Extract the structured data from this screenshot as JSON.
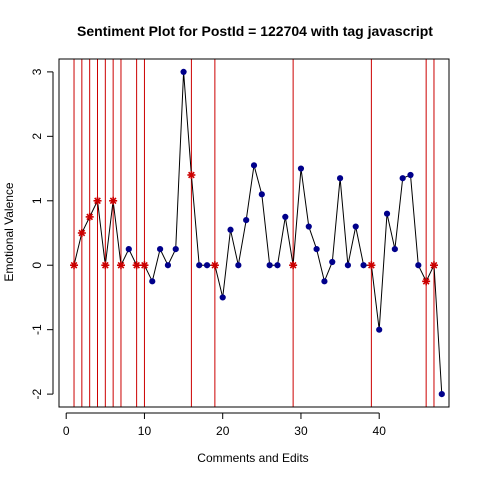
{
  "chart_data": {
    "type": "line",
    "title": "Sentiment Plot for PostId =  122704  with tag  javascript",
    "xlabel": "Comments and Edits",
    "ylabel": "Emotional Valence",
    "xlim": [
      0,
      48
    ],
    "ylim": [
      -2,
      3
    ],
    "x_ticks": [
      0,
      10,
      20,
      30,
      40
    ],
    "y_ticks": [
      -2,
      -1,
      0,
      1,
      2,
      3
    ],
    "colors": {
      "line": "#000000",
      "point": "#00008B",
      "edit_marker": "#CC0000",
      "edit_line": "#CC0000"
    },
    "series": [
      {
        "x": [
          1,
          2,
          3,
          4,
          5,
          6,
          7,
          8,
          9,
          10,
          11,
          12,
          13,
          14,
          15,
          16,
          17,
          18,
          19,
          20,
          21,
          22,
          23,
          24,
          25,
          26,
          27,
          28,
          29,
          30,
          31,
          32,
          33,
          34,
          35,
          36,
          37,
          38,
          39,
          40,
          41,
          42,
          43,
          44,
          45,
          46,
          47,
          48
        ],
        "values": [
          0,
          0.5,
          0.75,
          1,
          0,
          1,
          0,
          0.25,
          0,
          0,
          -0.25,
          0.25,
          0,
          0.25,
          3,
          1.4,
          0,
          0,
          0,
          -0.5,
          0.55,
          0,
          0.7,
          1.55,
          1.1,
          0,
          0,
          0.75,
          0,
          1.5,
          0.6,
          0.25,
          -0.25,
          0.05,
          1.35,
          0,
          0.6,
          0,
          0,
          -1,
          0.8,
          0.25,
          1.35,
          1.4,
          0,
          -0.25,
          0,
          -2
        ]
      }
    ],
    "edit_points": [
      1,
      2,
      3,
      4,
      5,
      6,
      7,
      9,
      10,
      16,
      19,
      29,
      39,
      46,
      47
    ],
    "edit_lines_x": [
      1,
      2,
      3,
      4,
      5,
      6,
      7,
      9,
      10,
      16,
      19,
      29,
      39,
      46,
      47
    ],
    "grid": false
  }
}
